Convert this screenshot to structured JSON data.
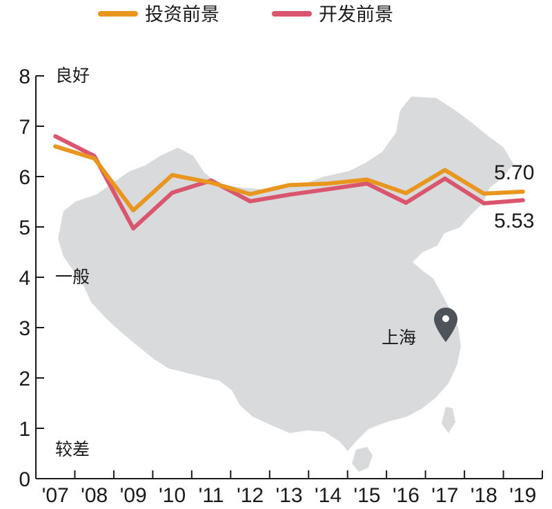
{
  "legend": [
    {
      "label": "投资前景",
      "color": "#E8961E"
    },
    {
      "label": "开发前景",
      "color": "#D9566E"
    }
  ],
  "quality_labels": {
    "good": "良好",
    "average": "一般",
    "poor": "较差"
  },
  "city_label": "上海",
  "end_labels": {
    "invest": "5.70",
    "develop": "5.53"
  },
  "chart_data": {
    "type": "line",
    "categories": [
      "'07",
      "'08",
      "'09",
      "'10",
      "'11",
      "'12",
      "'13",
      "'14",
      "'15",
      "'16",
      "'17",
      "'18",
      "'19"
    ],
    "ylim": [
      0,
      8
    ],
    "yticks": [
      "0",
      "1",
      "2",
      "3",
      "4",
      "5",
      "6",
      "7",
      "8"
    ],
    "series": [
      {
        "name": "投资前景",
        "color": "#E8961E",
        "values": [
          6.6,
          6.36,
          5.33,
          6.03,
          5.88,
          5.65,
          5.83,
          5.86,
          5.94,
          5.67,
          6.13,
          5.66,
          5.7
        ]
      },
      {
        "name": "开发前景",
        "color": "#D9566E",
        "values": [
          6.8,
          6.41,
          4.97,
          5.68,
          5.92,
          5.51,
          5.64,
          5.75,
          5.86,
          5.48,
          5.96,
          5.47,
          5.53
        ]
      }
    ],
    "background": "map of China",
    "grid": false
  }
}
